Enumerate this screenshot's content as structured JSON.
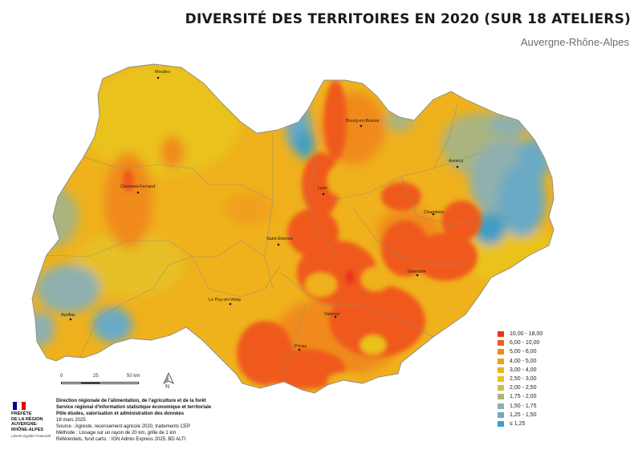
{
  "header": {
    "title": "DIVERSITÉ DES TERRITOIRES EN 2020 (SUR 18 ATELIERS)",
    "subtitle": "Auvergne-Rhône-Alpes"
  },
  "cities": [
    {
      "name": "Moulins"
    },
    {
      "name": "Bourg-en-Bresse"
    },
    {
      "name": "Annecy"
    },
    {
      "name": "Clermont-Ferrand"
    },
    {
      "name": "Lyon"
    },
    {
      "name": "Chambéry"
    },
    {
      "name": "Saint-Étienne"
    },
    {
      "name": "Grenoble"
    },
    {
      "name": "Le Puy-en-Velay"
    },
    {
      "name": "Aurillac"
    },
    {
      "name": "Valence"
    },
    {
      "name": "Privas"
    }
  ],
  "legend": {
    "items": [
      {
        "label": "10,00 - 18,00",
        "color": "#e8321e"
      },
      {
        "label": "6,00 - 10,00",
        "color": "#ef5a1e"
      },
      {
        "label": "5,00 - 6,00",
        "color": "#f08a1e"
      },
      {
        "label": "4,00 - 5,00",
        "color": "#f0a01e"
      },
      {
        "label": "3,00 - 4,00",
        "color": "#efb11c"
      },
      {
        "label": "2,50 - 3,00",
        "color": "#e9c21c"
      },
      {
        "label": "2,00 - 2,50",
        "color": "#c8c040"
      },
      {
        "label": "1,75 - 2,00",
        "color": "#a9b47e"
      },
      {
        "label": "1,50 - 1,75",
        "color": "#8fb0ae"
      },
      {
        "label": "1,25 - 1,50",
        "color": "#6aaac4"
      },
      {
        "label": "≤ 1,25",
        "color": "#3f9fc4"
      }
    ]
  },
  "scale": {
    "labels": [
      "0",
      "25",
      "50 km"
    ]
  },
  "north_arrow": {
    "letter": "N",
    "icon": "north-arrow-icon"
  },
  "logo": {
    "lines": [
      "PRÉFÈTE",
      "DE LA RÉGION",
      "AUVERGNE-",
      "RHÔNE-ALPES"
    ],
    "motto": "Liberté Égalité Fraternité",
    "flag_colors": [
      "#000091",
      "#ffffff",
      "#e1000f"
    ]
  },
  "credits": {
    "org_lines": [
      "Direction régionale de l'alimentation, de l'agriculture et de la forêt",
      "Service régional d'information statistique économique et territoriale",
      "Pôle études, valorisation et administration des données"
    ],
    "date": "18 mars 2025",
    "source": "Source : Agreste, recensement agricole 2020, traitements CEP",
    "method": "Méthode : Lissage sur un rayon de 20 km, grille de 1 km",
    "refs": "Référentiels, fond carto. : IGN Admin Express 2025, BD ALTI"
  }
}
